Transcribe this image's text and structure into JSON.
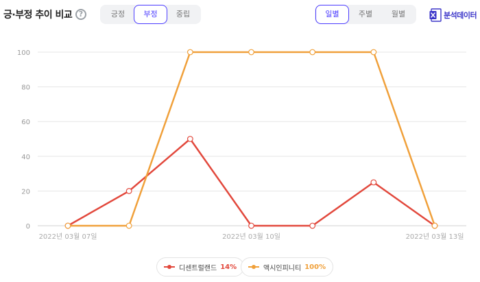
{
  "header": {
    "title": "긍·부정 추이 비교",
    "help": "?",
    "sentiment_tabs": [
      "긍정",
      "부정",
      "중립"
    ],
    "sentiment_active": 1,
    "period_tabs": [
      "일별",
      "주별",
      "월별"
    ],
    "period_active": 0,
    "export_label": "분석데이터",
    "export_icon": "excel-icon"
  },
  "colors": {
    "accent": "#4a3aff",
    "series_red": "#e2483c",
    "series_orange": "#f0a03a",
    "grid": "#e6e6e6"
  },
  "chart_data": {
    "type": "line",
    "title": "",
    "xlabel": "",
    "ylabel": "",
    "ylim": [
      0,
      100
    ],
    "yticks": [
      0,
      20,
      40,
      60,
      80,
      100
    ],
    "x": [
      "2022년 03월 07일",
      "2022년 03월 08일",
      "2022년 03월 09일",
      "2022년 03월 10일",
      "2022년 03월 11일",
      "2022년 03월 12일",
      "2022년 03월 13일"
    ],
    "xtick_labels": [
      "2022년 03월 07일",
      "2022년 03월 10일",
      "2022년 03월 13일"
    ],
    "series": [
      {
        "name": "디센트럴랜드",
        "percent": "14%",
        "color": "#e2483c",
        "values": [
          0,
          20,
          50,
          0,
          0,
          25,
          0
        ]
      },
      {
        "name": "액시인피니티",
        "percent": "100%",
        "color": "#f0a03a",
        "values": [
          0,
          0,
          100,
          100,
          100,
          100,
          0
        ]
      }
    ],
    "grid": true,
    "legend_position": "bottom"
  }
}
